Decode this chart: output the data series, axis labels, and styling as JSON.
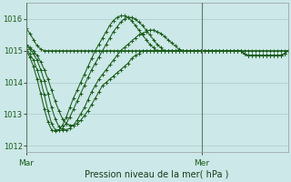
{
  "title": "Pression niveau de la mer( hPa )",
  "background_color": "#cce8e8",
  "grid_color": "#aacccc",
  "line_color": "#1a5c1a",
  "ylim": [
    1011.8,
    1016.5
  ],
  "yticks": [
    1012,
    1013,
    1014,
    1015,
    1016
  ],
  "xtick_labels": [
    "Mar",
    "Mer"
  ],
  "vline_x": 0.67,
  "n_points": 73,
  "series": [
    [
      1015.7,
      1015.55,
      1015.35,
      1015.15,
      1015.05,
      1015.0,
      1015.0,
      1015.0,
      1015.0,
      1015.0,
      1015.0,
      1015.0,
      1015.0,
      1015.0,
      1015.0,
      1015.0,
      1015.0,
      1015.0,
      1015.0,
      1015.0,
      1015.0,
      1015.0,
      1015.0,
      1015.0,
      1015.0,
      1015.0,
      1015.0,
      1015.0,
      1015.0,
      1015.0,
      1015.0,
      1015.0,
      1015.0,
      1015.0,
      1015.0,
      1015.0,
      1015.0,
      1015.0,
      1015.0,
      1015.0,
      1015.0,
      1015.0,
      1015.0,
      1015.0,
      1015.0,
      1015.0,
      1015.0,
      1015.0,
      1015.0,
      1015.0,
      1015.0,
      1015.0,
      1015.0,
      1015.0,
      1015.0,
      1015.0,
      1015.0,
      1015.0,
      1015.0,
      1015.0,
      1015.0,
      1015.0,
      1015.0,
      1015.0,
      1015.0,
      1015.0,
      1015.0,
      1015.0,
      1015.0,
      1015.0,
      1015.0,
      1015.0,
      1015.0
    ],
    [
      1015.2,
      1015.1,
      1015.0,
      1014.85,
      1014.65,
      1014.4,
      1014.1,
      1013.75,
      1013.4,
      1013.1,
      1012.85,
      1012.7,
      1012.65,
      1012.65,
      1012.7,
      1012.8,
      1012.95,
      1013.1,
      1013.3,
      1013.5,
      1013.7,
      1013.9,
      1014.0,
      1014.1,
      1014.2,
      1014.3,
      1014.4,
      1014.5,
      1014.6,
      1014.75,
      1014.85,
      1014.9,
      1015.0,
      1015.0,
      1015.0,
      1015.0,
      1015.0,
      1015.0,
      1015.0,
      1015.0,
      1015.0,
      1015.0,
      1015.0,
      1015.0,
      1015.0,
      1015.0,
      1015.0,
      1015.0,
      1015.0,
      1015.0,
      1015.0,
      1015.0,
      1015.0,
      1015.0,
      1015.0,
      1015.0,
      1015.0,
      1015.0,
      1015.0,
      1015.0,
      1014.9,
      1014.85,
      1014.85,
      1014.85,
      1014.85,
      1014.85,
      1014.85,
      1014.85,
      1014.85,
      1014.85,
      1014.85,
      1014.9,
      1015.0
    ],
    [
      1015.15,
      1015.05,
      1014.9,
      1014.7,
      1014.4,
      1014.05,
      1013.65,
      1013.2,
      1012.85,
      1012.6,
      1012.5,
      1012.5,
      1012.55,
      1012.65,
      1012.8,
      1013.0,
      1013.2,
      1013.45,
      1013.7,
      1013.9,
      1014.1,
      1014.25,
      1014.4,
      1014.55,
      1014.7,
      1014.85,
      1015.0,
      1015.1,
      1015.2,
      1015.3,
      1015.4,
      1015.5,
      1015.55,
      1015.6,
      1015.65,
      1015.65,
      1015.6,
      1015.55,
      1015.45,
      1015.35,
      1015.25,
      1015.15,
      1015.05,
      1015.0,
      1015.0,
      1015.0,
      1015.0,
      1015.0,
      1015.0,
      1015.0,
      1015.0,
      1015.0,
      1015.0,
      1015.0,
      1015.0,
      1015.0,
      1015.0,
      1015.0,
      1015.0,
      1015.0,
      1014.9,
      1014.85,
      1014.85,
      1014.85,
      1014.85,
      1014.85,
      1014.85,
      1014.85,
      1014.85,
      1014.85,
      1014.85,
      1014.9,
      1015.0
    ],
    [
      1015.05,
      1014.9,
      1014.7,
      1014.4,
      1014.05,
      1013.6,
      1013.1,
      1012.7,
      1012.5,
      1012.5,
      1012.55,
      1012.7,
      1012.9,
      1013.15,
      1013.4,
      1013.65,
      1013.9,
      1014.15,
      1014.4,
      1014.6,
      1014.8,
      1015.0,
      1015.2,
      1015.4,
      1015.6,
      1015.75,
      1015.9,
      1016.0,
      1016.05,
      1016.05,
      1016.0,
      1015.9,
      1015.8,
      1015.65,
      1015.5,
      1015.35,
      1015.2,
      1015.1,
      1015.0,
      1015.0,
      1015.0,
      1015.0,
      1015.0,
      1015.0,
      1015.0,
      1015.0,
      1015.0,
      1015.0,
      1015.0,
      1015.0,
      1015.0,
      1015.0,
      1015.0,
      1015.0,
      1015.0,
      1015.0,
      1015.0,
      1015.0,
      1015.0,
      1015.0,
      1014.9,
      1014.85,
      1014.85,
      1014.85,
      1014.85,
      1014.85,
      1014.85,
      1014.85,
      1014.85,
      1014.85,
      1014.85,
      1014.9,
      1015.0
    ],
    [
      1015.0,
      1014.8,
      1014.5,
      1014.1,
      1013.65,
      1013.15,
      1012.75,
      1012.5,
      1012.45,
      1012.5,
      1012.65,
      1012.9,
      1013.2,
      1013.5,
      1013.75,
      1014.0,
      1014.25,
      1014.5,
      1014.75,
      1015.0,
      1015.2,
      1015.4,
      1015.6,
      1015.8,
      1015.95,
      1016.05,
      1016.1,
      1016.1,
      1016.05,
      1015.95,
      1015.8,
      1015.65,
      1015.5,
      1015.35,
      1015.2,
      1015.1,
      1015.0,
      1015.0,
      1015.0,
      1015.0,
      1015.0,
      1015.0,
      1015.0,
      1015.0,
      1015.0,
      1015.0,
      1015.0,
      1015.0,
      1015.0,
      1015.0,
      1015.0,
      1015.0,
      1015.0,
      1015.0,
      1015.0,
      1015.0,
      1015.0,
      1015.0,
      1015.0,
      1015.0,
      1014.9,
      1014.85,
      1014.85,
      1014.85,
      1014.85,
      1014.85,
      1014.85,
      1014.85,
      1014.85,
      1014.85,
      1014.85,
      1014.9,
      1015.0
    ]
  ]
}
